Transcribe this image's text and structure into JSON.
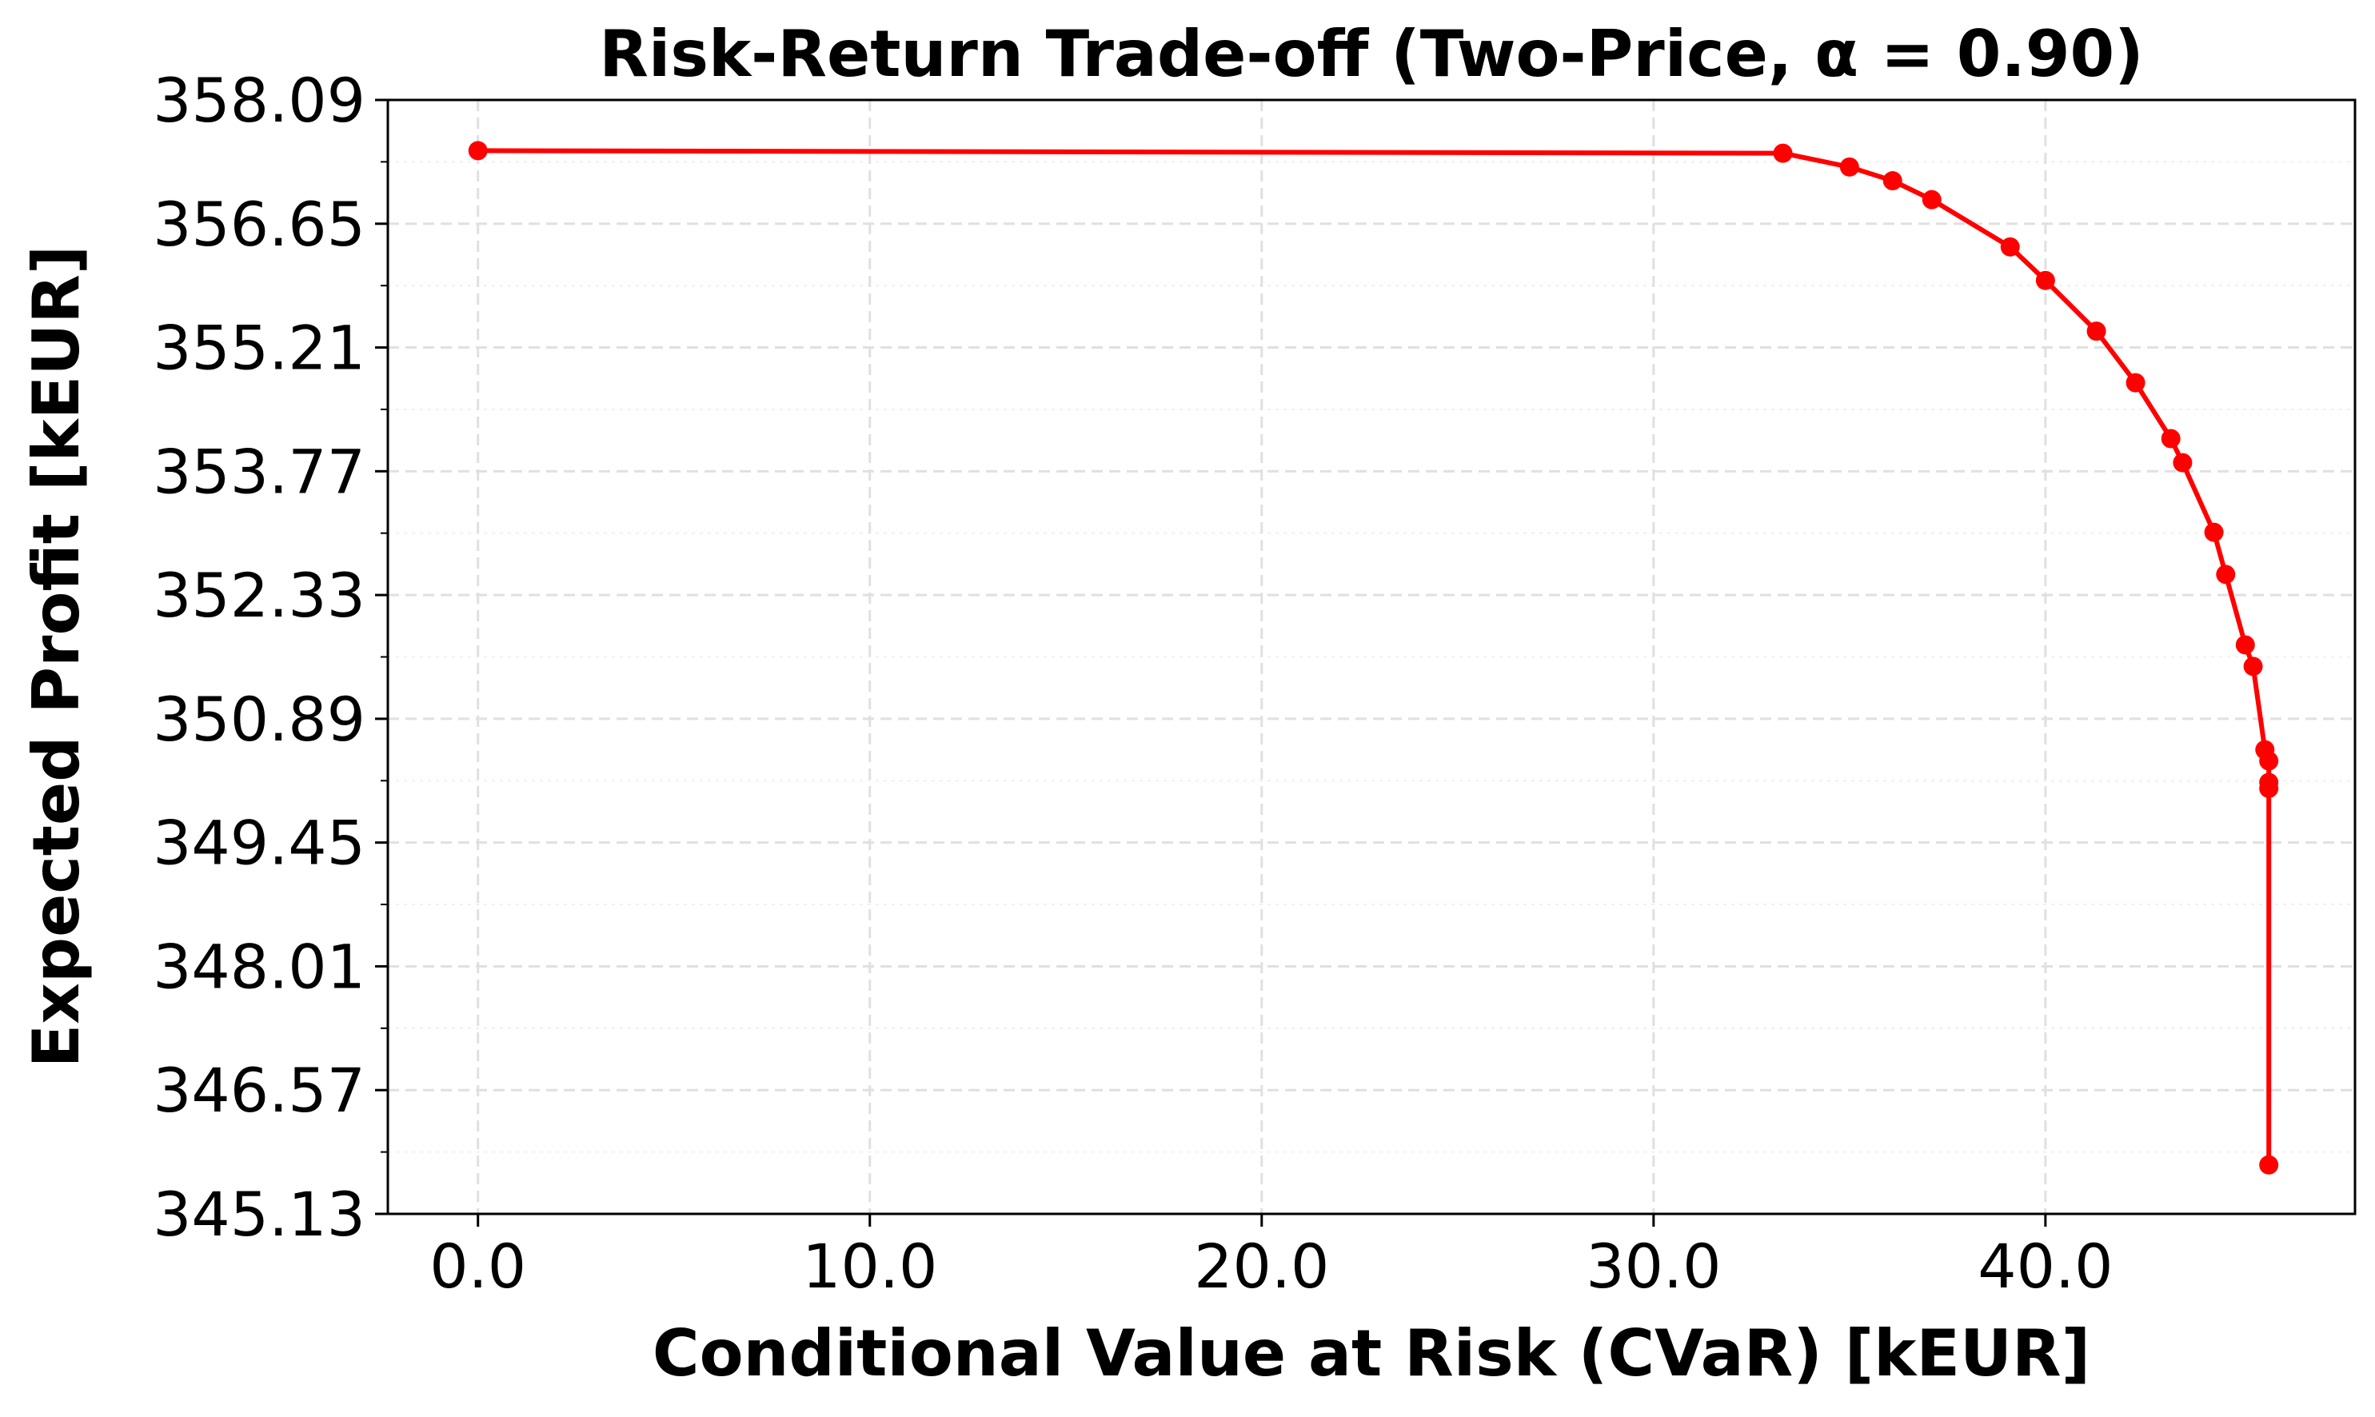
{
  "chart_data": {
    "type": "line",
    "title": "Risk-Return Trade-off (Two-Price, α = 0.90)",
    "xlabel": "Conditional Value at Risk (CVaR) [kEUR]",
    "ylabel": "Expected Profit [kEUR]",
    "xlim": [
      -2.3,
      47.9
    ],
    "ylim": [
      345.13,
      358.09
    ],
    "xticks": [
      0.0,
      10.0,
      20.0,
      30.0,
      40.0
    ],
    "xtick_labels": [
      "0.0",
      "10.0",
      "20.0",
      "30.0",
      "40.0"
    ],
    "yticks": [
      345.13,
      346.57,
      348.01,
      349.45,
      350.89,
      352.33,
      353.77,
      355.21,
      356.65,
      358.09
    ],
    "ytick_labels": [
      "345.13",
      "346.57",
      "348.01",
      "349.45",
      "350.89",
      "352.33",
      "353.77",
      "355.21",
      "356.65",
      "358.09"
    ],
    "grid": true,
    "legend": false,
    "colors": {
      "line": "#ff0000",
      "marker": "#ff0000",
      "grid": "#e0e0e0",
      "axis": "#000000"
    },
    "series": [
      {
        "x": [
          0.0,
          33.3,
          35.0,
          36.1,
          37.1,
          39.1,
          40.0,
          41.3,
          42.3,
          43.2,
          43.5,
          44.3,
          44.6,
          45.1,
          45.3,
          45.6,
          45.7,
          45.7,
          45.7,
          45.7
        ],
        "y": [
          357.5,
          357.47,
          357.31,
          357.15,
          356.93,
          356.38,
          355.99,
          355.4,
          354.8,
          354.15,
          353.87,
          353.06,
          352.57,
          351.75,
          351.5,
          350.53,
          350.4,
          350.15,
          350.08,
          345.7
        ]
      }
    ]
  }
}
